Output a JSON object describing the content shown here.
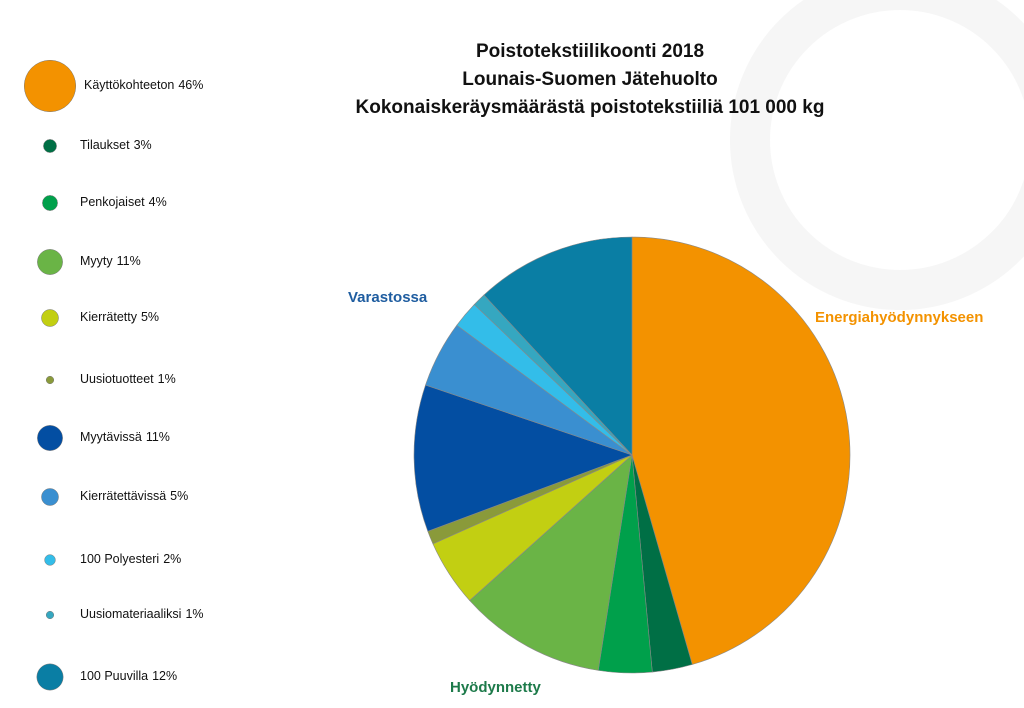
{
  "chart_data": {
    "type": "pie",
    "title": [
      "Poistotekstiilikoonti 2018",
      "Lounais-Suomen Jätehuolto",
      "Kokonaiskeräysmäärästä poistotekstiiliä 101 000 kg"
    ],
    "categories": [
      "Käyttökohteeton",
      "Tilaukset",
      "Penkojaiset",
      "Myyty",
      "Kierrätetty",
      "Uusiotuotteet",
      "Myytävissä",
      "Kierrätettävissä",
      "100 Polyesteri",
      "Uusiomateriaaliksi",
      "100 Puuvilla"
    ],
    "values": [
      46,
      3,
      4,
      11,
      5,
      1,
      11,
      5,
      2,
      1,
      12
    ],
    "value_labels": [
      "46%",
      "3%",
      "4%",
      "11%",
      "5%",
      "1%",
      "11%",
      "5%",
      "2%",
      "1%",
      "12%"
    ],
    "colors": [
      "#f39200",
      "#006f45",
      "#00a04b",
      "#6ab446",
      "#c2cf12",
      "#8a9a3a",
      "#034ea2",
      "#3a8fd0",
      "#33bde9",
      "#35a7c0",
      "#0a7ea4"
    ],
    "annotations": [
      {
        "text": "Varastossa",
        "color": "#1f5da0"
      },
      {
        "text": "Energiahyödynnykseen",
        "color": "#f39200"
      },
      {
        "text": "Hyödynnetty",
        "color": "#1d7a4a"
      }
    ]
  }
}
